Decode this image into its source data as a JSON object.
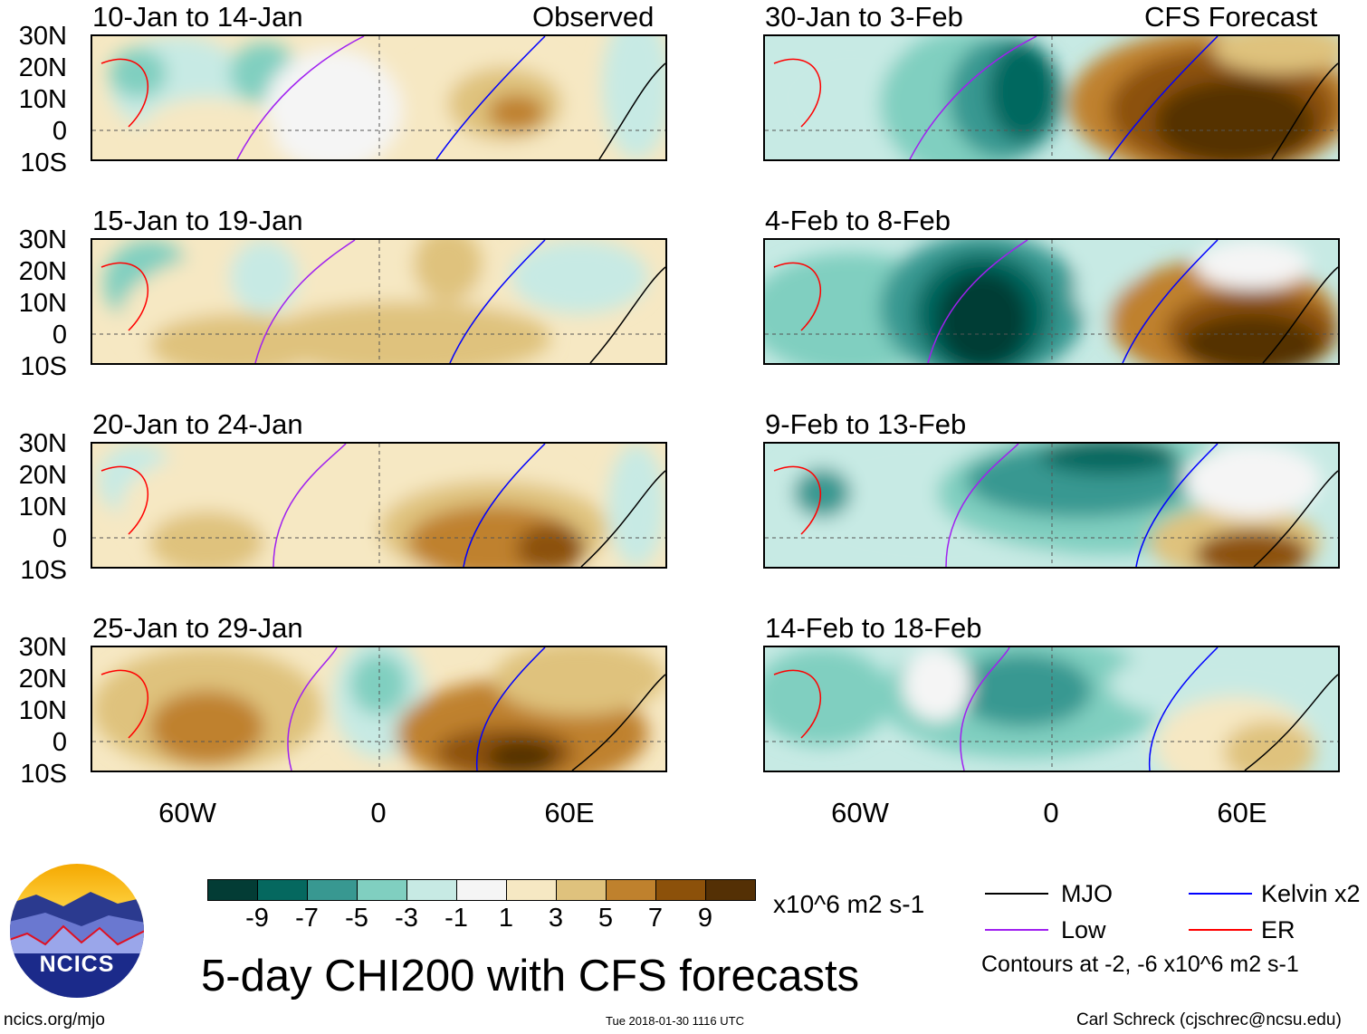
{
  "header": {
    "left_label": "Observed",
    "right_label": "CFS Forecast"
  },
  "lat_labels": [
    "30N",
    "20N",
    "10N",
    "0",
    "10S"
  ],
  "lon_labels": [
    "60W",
    "0",
    "60E"
  ],
  "panels_left": [
    {
      "title": "10-Jan to 14-Jan"
    },
    {
      "title": "15-Jan to 19-Jan"
    },
    {
      "title": "20-Jan to 24-Jan"
    },
    {
      "title": "25-Jan to 29-Jan"
    }
  ],
  "panels_right": [
    {
      "title": "30-Jan to 3-Feb"
    },
    {
      "title": "4-Feb to 8-Feb"
    },
    {
      "title": "9-Feb to 13-Feb"
    },
    {
      "title": "14-Feb to 18-Feb"
    }
  ],
  "colorbar": {
    "colors": [
      "#033c35",
      "#05685f",
      "#389891",
      "#80cfc0",
      "#c7eae4",
      "#f5f5f5",
      "#f6e8c3",
      "#dfc27d",
      "#bf812d",
      "#8c510a",
      "#543005"
    ],
    "labels": [
      "-9",
      "-7",
      "-5",
      "-3",
      "-1",
      "1",
      "3",
      "5",
      "7",
      "9"
    ],
    "units": "x10^6 m2 s-1"
  },
  "legend": {
    "items": [
      {
        "label": "MJO",
        "color": "#000000"
      },
      {
        "label": "Kelvin x2",
        "color": "#0000ff"
      },
      {
        "label": "Low",
        "color": "#a020f0"
      },
      {
        "label": "ER",
        "color": "#ff0000"
      }
    ],
    "note": "Contours at -2, -6 x10^6 m2 s-1"
  },
  "title": "5-day CHI200 with CFS forecasts",
  "logo_text": "NCICS",
  "footer": {
    "url": "ncics.org/mjo",
    "timestamp": "Tue 2018-01-30 1116 UTC",
    "credit": "Carl Schreck (cjschrec@ncsu.edu)"
  }
}
